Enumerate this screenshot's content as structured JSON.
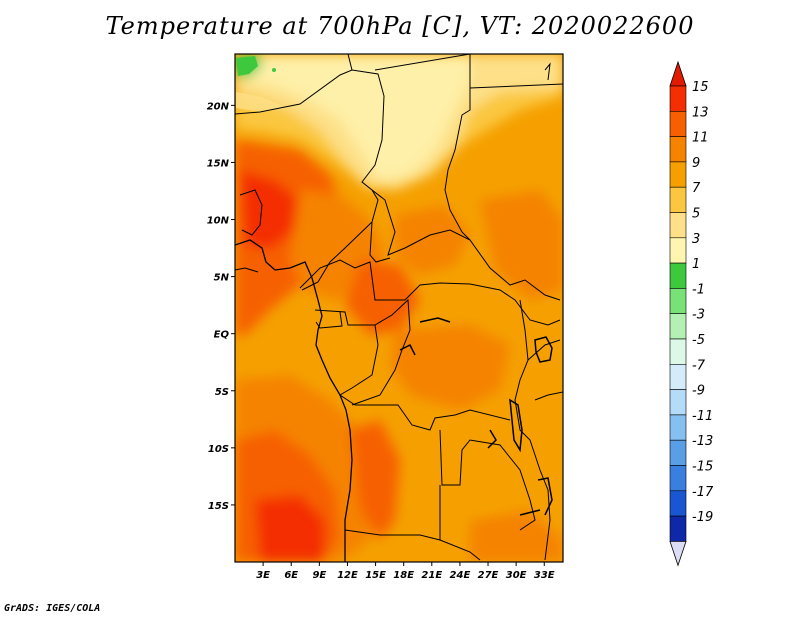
{
  "title": "Temperature at 700hPa [C], VT: 2020022600",
  "footer": "GrADS: IGES/COLA",
  "map": {
    "lat_labels": [
      "20N",
      "15N",
      "10N",
      "5N",
      "EQ",
      "5S",
      "10S",
      "15S"
    ],
    "lon_labels": [
      "3E",
      "6E",
      "9E",
      "12E",
      "15E",
      "18E",
      "21E",
      "24E",
      "27E",
      "30E",
      "33E"
    ],
    "lat_values": [
      20,
      15,
      10,
      5,
      0,
      -5,
      -10,
      -15
    ],
    "lon_values": [
      3,
      6,
      9,
      12,
      15,
      18,
      21,
      24,
      27,
      30,
      33
    ],
    "lon_range": [
      0,
      35
    ],
    "lat_range": [
      -20,
      24.5
    ],
    "dominant_field_color": "#f5a000"
  },
  "colorbar": {
    "labels": [
      "15",
      "13",
      "11",
      "9",
      "7",
      "5",
      "3",
      "1",
      "-1",
      "-3",
      "-5",
      "-7",
      "-9",
      "-11",
      "-13",
      "-15",
      "-17",
      "-19"
    ],
    "colors": [
      "#f42e00",
      "#f66000",
      "#f58300",
      "#f5a000",
      "#fbc740",
      "#fde088",
      "#fef5b0",
      "#3ec83e",
      "#78e178",
      "#b4f0b4",
      "#dcf8e6",
      "#d4ecfa",
      "#b4dcf8",
      "#86c0f0",
      "#5a9ee6",
      "#3a7ee0",
      "#1a56d2",
      "#0f28a8",
      "#0a0a6e",
      "#d8d8f4"
    ],
    "top_arrow_color": "#e41a00",
    "bottom_arrow_color": "#dcdcf4"
  }
}
